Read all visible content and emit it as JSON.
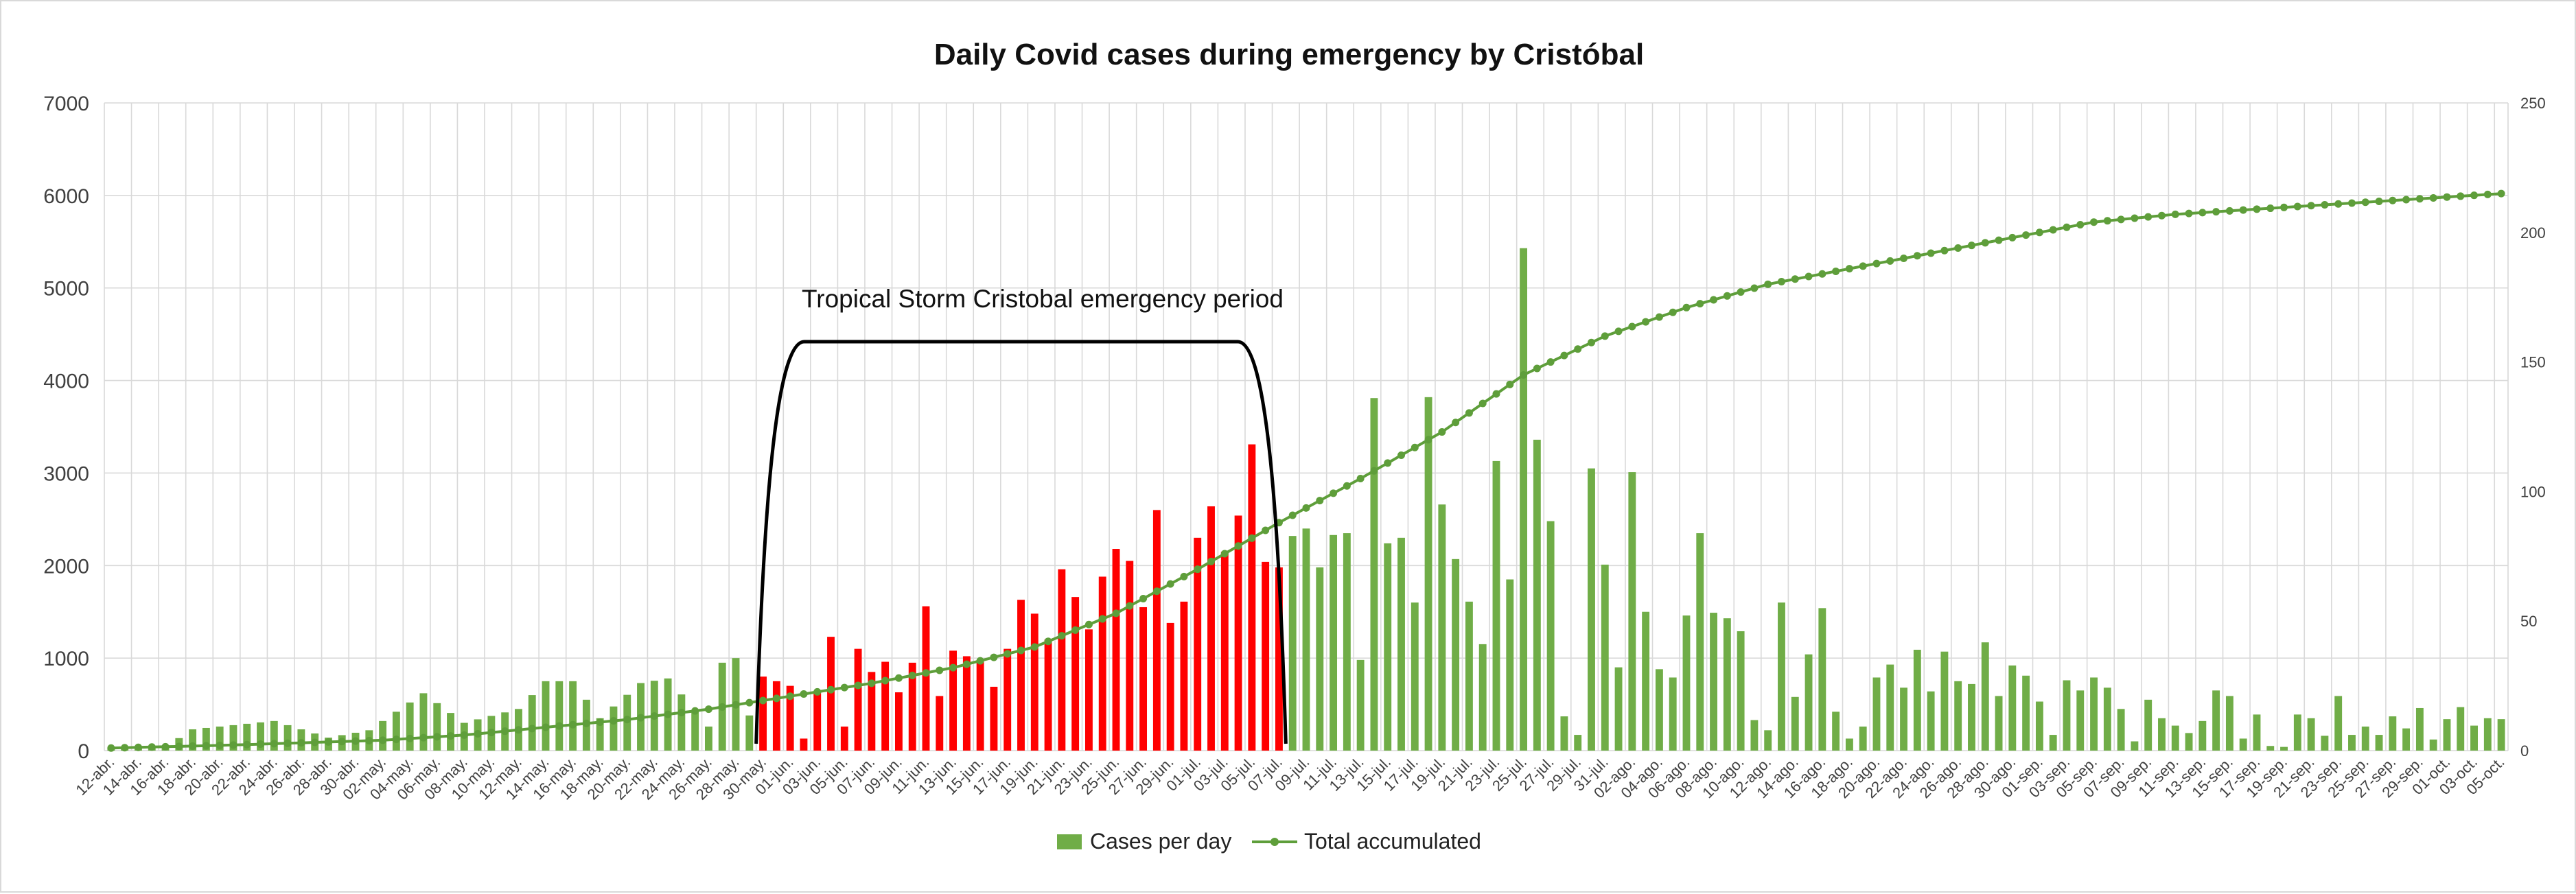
{
  "chart_data": {
    "type": "bar+line",
    "title": "Daily Covid cases during emergency by Cristóbal",
    "annotation": "Tropical  Storm Cristobal emergency period",
    "left_axis": {
      "ylim": [
        0,
        7000
      ],
      "ticks": [
        0,
        1000,
        2000,
        3000,
        4000,
        5000,
        6000,
        7000
      ]
    },
    "right_axis": {
      "ylim": [
        0,
        250
      ],
      "ticks": [
        0,
        50,
        100,
        150,
        200,
        250
      ]
    },
    "legend": {
      "position": "bottom",
      "bars_label": "Cases per day",
      "line_label": "Total accumulated"
    },
    "colors": {
      "normal_bar": "#70ad47",
      "emergency_bar": "#ff0000",
      "line": "#5e9e3a",
      "bracket": "#000000"
    },
    "emergency_window": {
      "start": "30-may.",
      "end": "07-jul."
    },
    "start_date": "2020-04-12",
    "end_date": "2020-10-05",
    "tick_every_days": 2,
    "keyframes_cases": [
      [
        "12-abr.",
        30
      ],
      [
        "16-abr.",
        40
      ],
      [
        "18-abr.",
        230
      ],
      [
        "24-abr.",
        320
      ],
      [
        "28-abr.",
        140
      ],
      [
        "01-may.",
        220
      ],
      [
        "05-may.",
        620
      ],
      [
        "08-may.",
        300
      ],
      [
        "12-may.",
        450
      ],
      [
        "14-may.",
        750
      ],
      [
        "16-may.",
        750
      ],
      [
        "18-may.",
        350
      ],
      [
        "21-may.",
        730
      ],
      [
        "23-may.",
        780
      ],
      [
        "26-may.",
        260
      ],
      [
        "27-may.",
        950
      ],
      [
        "28-may.",
        1000
      ],
      [
        "29-may.",
        380
      ],
      [
        "30-may.",
        800
      ],
      [
        "01-jun.",
        700
      ],
      [
        "02-jun.",
        130
      ],
      [
        "03-jun.",
        640
      ],
      [
        "04-jun.",
        1230
      ],
      [
        "05-jun.",
        260
      ],
      [
        "06-jun.",
        1100
      ],
      [
        "07-jun.",
        850
      ],
      [
        "08-jun.",
        960
      ],
      [
        "09-jun.",
        630
      ],
      [
        "10-jun.",
        950
      ],
      [
        "11-jun.",
        1560
      ],
      [
        "12-jun.",
        590
      ],
      [
        "13-jun.",
        1080
      ],
      [
        "14-jun.",
        1020
      ],
      [
        "15-jun.",
        980
      ],
      [
        "16-jun.",
        690
      ],
      [
        "17-jun.",
        1100
      ],
      [
        "18-jun.",
        1630
      ],
      [
        "19-jun.",
        1480
      ],
      [
        "20-jun.",
        1200
      ],
      [
        "21-jun.",
        1960
      ],
      [
        "22-jun.",
        1660
      ],
      [
        "23-jun.",
        1310
      ],
      [
        "24-jun.",
        1880
      ],
      [
        "25-jun.",
        2180
      ],
      [
        "26-jun.",
        2050
      ],
      [
        "27-jun.",
        1550
      ],
      [
        "28-jun.",
        2600
      ],
      [
        "29-jun.",
        1380
      ],
      [
        "30-jun.",
        1610
      ],
      [
        "01-jul.",
        2300
      ],
      [
        "02-jul.",
        2640
      ],
      [
        "03-jul.",
        2150
      ],
      [
        "04-jul.",
        2540
      ],
      [
        "05-jul.",
        3310
      ],
      [
        "06-jul.",
        2040
      ],
      [
        "07-jul.",
        1980
      ],
      [
        "08-jul.",
        2320
      ],
      [
        "09-jul.",
        2400
      ],
      [
        "10-jul.",
        1980
      ],
      [
        "11-jul.",
        2330
      ],
      [
        "12-jul.",
        2350
      ],
      [
        "13-jul.",
        980
      ],
      [
        "14-jul.",
        3810
      ],
      [
        "15-jul.",
        2240
      ],
      [
        "16-jul.",
        2300
      ],
      [
        "17-jul.",
        1600
      ],
      [
        "18-jul.",
        3820
      ],
      [
        "19-jul.",
        2660
      ],
      [
        "20-jul.",
        2070
      ],
      [
        "22-jul.",
        1150
      ],
      [
        "23-jul.",
        3130
      ],
      [
        "24-jul.",
        1850
      ],
      [
        "25-jul.",
        5430
      ],
      [
        "26-jul.",
        3360
      ],
      [
        "27-jul.",
        2480
      ],
      [
        "28-jul.",
        370
      ],
      [
        "29-jul.",
        170
      ],
      [
        "30-jul.",
        3050
      ],
      [
        "31-jul.",
        2010
      ],
      [
        "01-ago.",
        900
      ],
      [
        "02-ago.",
        3010
      ],
      [
        "03-ago.",
        1500
      ],
      [
        "04-ago.",
        880
      ],
      [
        "05-ago.",
        790
      ],
      [
        "06-ago.",
        1460
      ],
      [
        "07-ago.",
        2350
      ],
      [
        "08-ago.",
        1490
      ],
      [
        "09-ago.",
        1430
      ],
      [
        "10-ago.",
        1290
      ],
      [
        "11-ago.",
        330
      ],
      [
        "12-ago.",
        220
      ],
      [
        "13-ago.",
        1600
      ],
      [
        "14-ago.",
        580
      ],
      [
        "15-ago.",
        1040
      ],
      [
        "16-ago.",
        1540
      ],
      [
        "17-ago.",
        420
      ],
      [
        "18-ago.",
        130
      ],
      [
        "19-ago.",
        260
      ],
      [
        "20-ago.",
        790
      ],
      [
        "21-ago.",
        930
      ],
      [
        "22-ago.",
        680
      ],
      [
        "23-ago.",
        1090
      ],
      [
        "24-ago.",
        640
      ],
      [
        "25-ago.",
        1070
      ],
      [
        "26-ago.",
        750
      ],
      [
        "27-ago.",
        720
      ],
      [
        "28-ago.",
        1170
      ],
      [
        "29-ago.",
        590
      ],
      [
        "30-ago.",
        920
      ],
      [
        "31-ago.",
        810
      ],
      [
        "01-sep.",
        530
      ],
      [
        "02-sep.",
        170
      ],
      [
        "03-sep.",
        760
      ],
      [
        "04-sep.",
        650
      ],
      [
        "05-sep.",
        790
      ],
      [
        "06-sep.",
        680
      ],
      [
        "07-sep.",
        450
      ],
      [
        "08-sep.",
        100
      ],
      [
        "09-sep.",
        550
      ],
      [
        "10-sep.",
        350
      ],
      [
        "11-sep.",
        270
      ],
      [
        "12-sep.",
        190
      ],
      [
        "13-sep.",
        320
      ],
      [
        "14-sep.",
        650
      ],
      [
        "15-sep.",
        590
      ],
      [
        "16-sep.",
        130
      ],
      [
        "17-sep.",
        390
      ],
      [
        "18-sep.",
        50
      ],
      [
        "19-sep.",
        40
      ],
      [
        "20-sep.",
        390
      ],
      [
        "21-sep.",
        350
      ],
      [
        "22-sep.",
        160
      ],
      [
        "23-sep.",
        590
      ],
      [
        "24-sep.",
        170
      ],
      [
        "25-sep.",
        260
      ],
      [
        "26-sep.",
        170
      ],
      [
        "27-sep.",
        370
      ],
      [
        "28-sep.",
        240
      ],
      [
        "29-sep.",
        460
      ],
      [
        "30-sep.",
        120
      ],
      [
        "01-oct.",
        340
      ],
      [
        "02-oct.",
        470
      ],
      [
        "03-oct.",
        270
      ],
      [
        "04-oct.",
        350
      ],
      [
        "05-oct.",
        340
      ]
    ],
    "keyframes_accumulated": [
      [
        "12-abr.",
        1
      ],
      [
        "20-abr.",
        2
      ],
      [
        "26-abr.",
        3
      ],
      [
        "02-may.",
        4
      ],
      [
        "08-may.",
        6
      ],
      [
        "14-may.",
        9
      ],
      [
        "20-may.",
        12
      ],
      [
        "26-may.",
        16
      ],
      [
        "01-jun.",
        21
      ],
      [
        "07-jun.",
        26
      ],
      [
        "13-jun.",
        32
      ],
      [
        "19-jun.",
        40
      ],
      [
        "25-jun.",
        53
      ],
      [
        "01-jul.",
        70
      ],
      [
        "07-jul.",
        88
      ],
      [
        "13-jul.",
        105
      ],
      [
        "19-jul.",
        123
      ],
      [
        "25-jul.",
        145
      ],
      [
        "31-jul.",
        160
      ],
      [
        "06-ago.",
        171
      ],
      [
        "12-ago.",
        180
      ],
      [
        "18-ago.",
        186
      ],
      [
        "24-ago.",
        192
      ],
      [
        "30-ago.",
        198
      ],
      [
        "05-sep.",
        204
      ],
      [
        "11-sep.",
        207
      ],
      [
        "17-sep.",
        209
      ],
      [
        "23-sep.",
        211
      ],
      [
        "29-sep.",
        213
      ],
      [
        "05-oct.",
        215
      ]
    ]
  }
}
